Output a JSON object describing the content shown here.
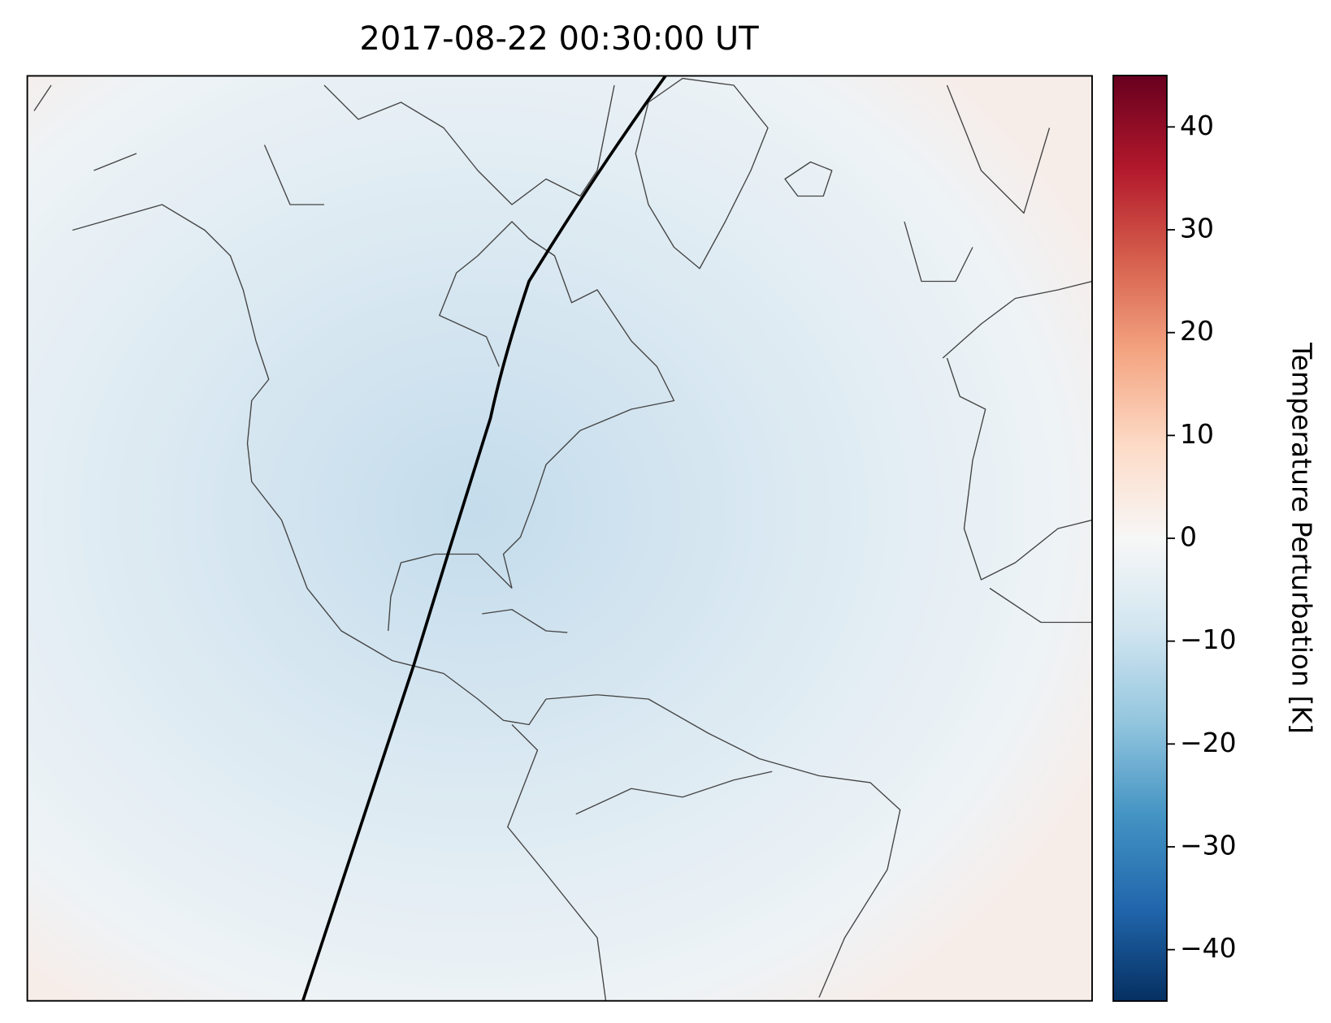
{
  "chart_data": {
    "type": "map",
    "title": "2017-08-22 00:30:00 UT",
    "colorbar": {
      "label": "Temperature Perturbation [K]",
      "clim": [
        -45,
        45
      ],
      "ticks": [
        {
          "value": -40,
          "label": "−40"
        },
        {
          "value": -30,
          "label": "−30"
        },
        {
          "value": -20,
          "label": "−20"
        },
        {
          "value": -10,
          "label": "−10"
        },
        0,
        10,
        20,
        30,
        40
      ],
      "colors": [
        "#053061",
        "#2166ac",
        "#4393c3",
        "#92c5de",
        "#d1e5f0",
        "#f7f7f7",
        "#fddbc7",
        "#f4a582",
        "#d6604d",
        "#b2182b",
        "#67001f"
      ]
    }
  }
}
